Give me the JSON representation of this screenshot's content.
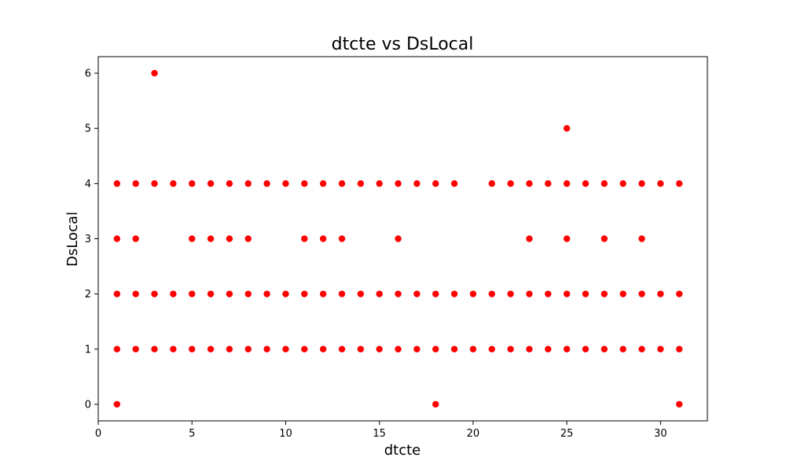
{
  "chart_data": {
    "type": "scatter",
    "title": "dtcte vs DsLocal",
    "xlabel": "dtcte",
    "ylabel": "DsLocal",
    "xlim": [
      0,
      32.5
    ],
    "ylim": [
      -0.3,
      6.3
    ],
    "xticks": [
      0,
      5,
      10,
      15,
      20,
      25,
      30
    ],
    "yticks": [
      0,
      1,
      2,
      3,
      4,
      5,
      6
    ],
    "grid": false,
    "marker_color": "#ff0000",
    "points": [
      [
        1,
        0
      ],
      [
        1,
        1
      ],
      [
        1,
        2
      ],
      [
        1,
        3
      ],
      [
        1,
        4
      ],
      [
        2,
        1
      ],
      [
        2,
        2
      ],
      [
        2,
        3
      ],
      [
        2,
        4
      ],
      [
        3,
        1
      ],
      [
        3,
        2
      ],
      [
        3,
        4
      ],
      [
        3,
        6
      ],
      [
        4,
        1
      ],
      [
        4,
        2
      ],
      [
        4,
        4
      ],
      [
        5,
        1
      ],
      [
        5,
        2
      ],
      [
        5,
        3
      ],
      [
        5,
        4
      ],
      [
        6,
        1
      ],
      [
        6,
        2
      ],
      [
        6,
        3
      ],
      [
        6,
        4
      ],
      [
        7,
        1
      ],
      [
        7,
        2
      ],
      [
        7,
        3
      ],
      [
        7,
        4
      ],
      [
        8,
        1
      ],
      [
        8,
        2
      ],
      [
        8,
        3
      ],
      [
        8,
        4
      ],
      [
        9,
        1
      ],
      [
        9,
        2
      ],
      [
        9,
        4
      ],
      [
        10,
        1
      ],
      [
        10,
        2
      ],
      [
        10,
        4
      ],
      [
        11,
        1
      ],
      [
        11,
        2
      ],
      [
        11,
        3
      ],
      [
        11,
        4
      ],
      [
        12,
        1
      ],
      [
        12,
        2
      ],
      [
        12,
        3
      ],
      [
        12,
        4
      ],
      [
        13,
        1
      ],
      [
        13,
        2
      ],
      [
        13,
        3
      ],
      [
        13,
        4
      ],
      [
        14,
        1
      ],
      [
        14,
        2
      ],
      [
        14,
        4
      ],
      [
        15,
        1
      ],
      [
        15,
        2
      ],
      [
        15,
        4
      ],
      [
        16,
        1
      ],
      [
        16,
        2
      ],
      [
        16,
        3
      ],
      [
        16,
        4
      ],
      [
        17,
        1
      ],
      [
        17,
        2
      ],
      [
        17,
        4
      ],
      [
        18,
        0
      ],
      [
        18,
        1
      ],
      [
        18,
        2
      ],
      [
        18,
        4
      ],
      [
        19,
        1
      ],
      [
        19,
        2
      ],
      [
        19,
        4
      ],
      [
        20,
        1
      ],
      [
        20,
        2
      ],
      [
        21,
        1
      ],
      [
        21,
        2
      ],
      [
        21,
        4
      ],
      [
        22,
        1
      ],
      [
        22,
        2
      ],
      [
        22,
        4
      ],
      [
        23,
        1
      ],
      [
        23,
        2
      ],
      [
        23,
        3
      ],
      [
        23,
        4
      ],
      [
        24,
        1
      ],
      [
        24,
        2
      ],
      [
        24,
        4
      ],
      [
        25,
        1
      ],
      [
        25,
        2
      ],
      [
        25,
        3
      ],
      [
        25,
        4
      ],
      [
        25,
        5
      ],
      [
        26,
        1
      ],
      [
        26,
        2
      ],
      [
        26,
        4
      ],
      [
        27,
        1
      ],
      [
        27,
        2
      ],
      [
        27,
        3
      ],
      [
        27,
        4
      ],
      [
        28,
        1
      ],
      [
        28,
        2
      ],
      [
        28,
        4
      ],
      [
        29,
        1
      ],
      [
        29,
        2
      ],
      [
        29,
        3
      ],
      [
        29,
        4
      ],
      [
        30,
        1
      ],
      [
        30,
        2
      ],
      [
        30,
        4
      ],
      [
        31,
        0
      ],
      [
        31,
        1
      ],
      [
        31,
        2
      ],
      [
        31,
        4
      ]
    ]
  }
}
